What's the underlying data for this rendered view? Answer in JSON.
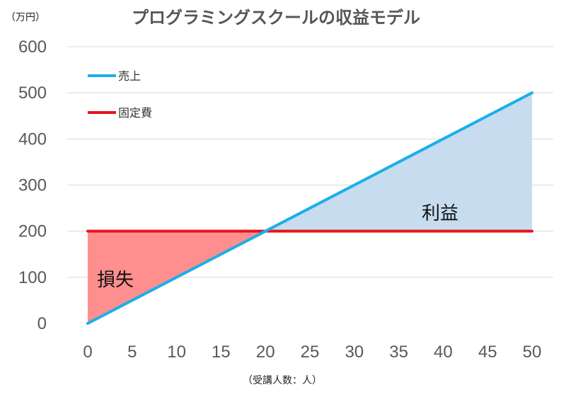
{
  "chart_data": {
    "type": "line",
    "title": "プログラミングスクールの収益モデル",
    "ylabel": "（万円）",
    "xlabel": "（受講人数：人）",
    "x": [
      0,
      5,
      10,
      15,
      20,
      25,
      30,
      35,
      40,
      45,
      50
    ],
    "xlim": [
      0,
      50
    ],
    "ylim": [
      0,
      600
    ],
    "yticks": [
      0,
      100,
      200,
      300,
      400,
      500,
      600
    ],
    "grid": true,
    "legend_position": "top-left",
    "series": [
      {
        "name": "売上",
        "color": "#1ab0e8",
        "values": [
          0,
          50,
          100,
          150,
          200,
          250,
          300,
          350,
          400,
          450,
          500
        ]
      },
      {
        "name": "固定費",
        "color": "#e8131b",
        "values": [
          200,
          200,
          200,
          200,
          200,
          200,
          200,
          200,
          200,
          200,
          200
        ]
      }
    ],
    "regions": [
      {
        "label": "損失",
        "color": "#ff8f8f",
        "x_range": [
          0,
          20
        ]
      },
      {
        "label": "利益",
        "color": "#c8dcf0",
        "x_range": [
          20,
          50
        ]
      }
    ]
  }
}
